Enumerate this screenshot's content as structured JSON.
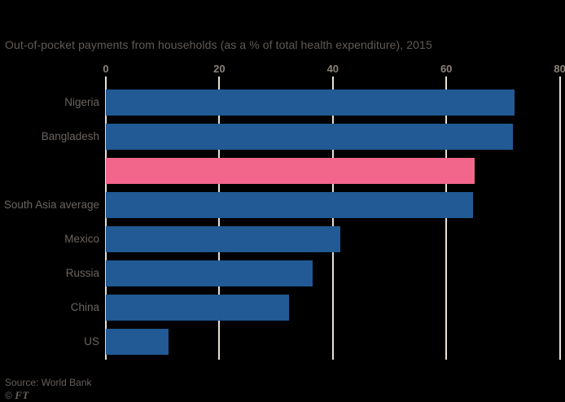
{
  "chart_data": {
    "type": "bar",
    "orientation": "horizontal",
    "title": "Out-of-pocket payments from households (as a % of total health expenditure), 2015",
    "categories": [
      "Nigeria",
      "Bangladesh",
      "",
      "South Asia average",
      "Mexico",
      "Russia",
      "China",
      "US"
    ],
    "values": [
      72,
      71.8,
      65,
      64.7,
      41.3,
      36.4,
      32.3,
      11.1
    ],
    "highlight_index": 2,
    "xticks": [
      0,
      20,
      40,
      60,
      80
    ],
    "xlim": [
      0,
      80
    ],
    "grid": "vertical",
    "legend": "none"
  },
  "colors": {
    "background": "#000000",
    "bar_blue": "#215a94",
    "bar_pink": "#f2668c",
    "gridline": "#eadfd3",
    "tick_label": "#8a8177",
    "text": "#66605c"
  },
  "footer": {
    "source": "Source: World Bank",
    "copyright_symbol": "©",
    "copyright_brand": "FT"
  }
}
